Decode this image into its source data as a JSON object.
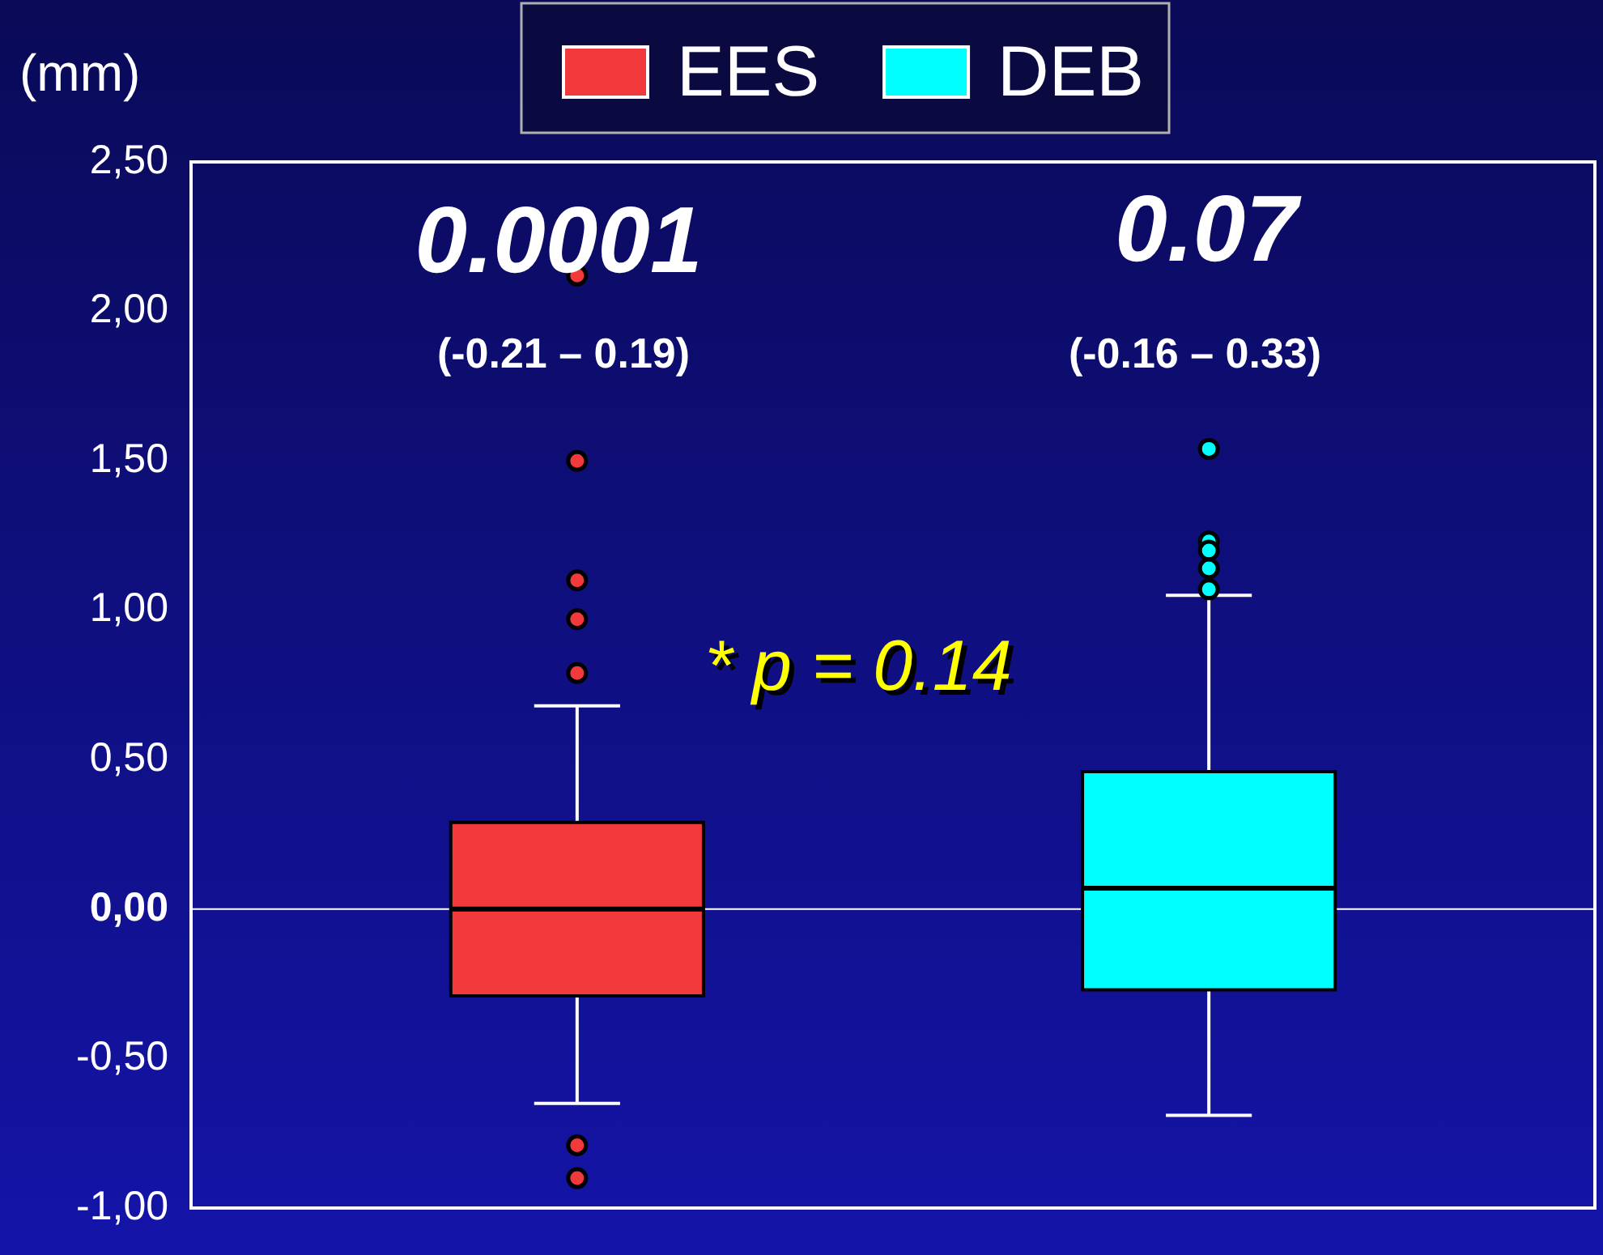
{
  "chart_data": {
    "type": "box",
    "ylabel": "(mm)",
    "categories": [
      null
    ],
    "series": [
      {
        "name": "EES",
        "color": "#f23a3c",
        "boxes": [
          {
            "low": -0.65,
            "q1": -0.29,
            "median": 0.0,
            "q3": 0.29,
            "high": 0.68,
            "outliers": [
              2.12,
              1.5,
              1.1,
              0.97,
              0.79,
              -0.79,
              -0.9
            ]
          }
        ]
      },
      {
        "name": "DEB",
        "color": "#00ffff",
        "boxes": [
          {
            "low": -0.69,
            "q1": -0.27,
            "median": 0.07,
            "q3": 0.46,
            "high": 1.05,
            "outliers": [
              1.54,
              1.23,
              1.2,
              1.14,
              1.07
            ]
          }
        ]
      }
    ],
    "ylim": [
      -1,
      2.5
    ],
    "yticks": [
      {
        "value": -1,
        "label": "-1,00"
      },
      {
        "value": -0.5,
        "label": "-0,50"
      },
      {
        "value": 0,
        "label": "0,00"
      },
      {
        "value": 0.5,
        "label": "0,50"
      },
      {
        "value": 1,
        "label": "1,00"
      },
      {
        "value": 1.5,
        "label": "1,50"
      },
      {
        "value": 2,
        "label": "2,00"
      },
      {
        "value": 2.5,
        "label": "2,50"
      }
    ],
    "ref_lines": [
      {
        "axis": "y",
        "value": 0,
        "color": "#ffffff"
      }
    ],
    "grid": false,
    "legend": "top",
    "annotations": [
      "0.0001",
      "(-0.21 – 0.19)",
      "0.07",
      "(-0.16 – 0.33)",
      "* p = 0.14"
    ]
  }
}
